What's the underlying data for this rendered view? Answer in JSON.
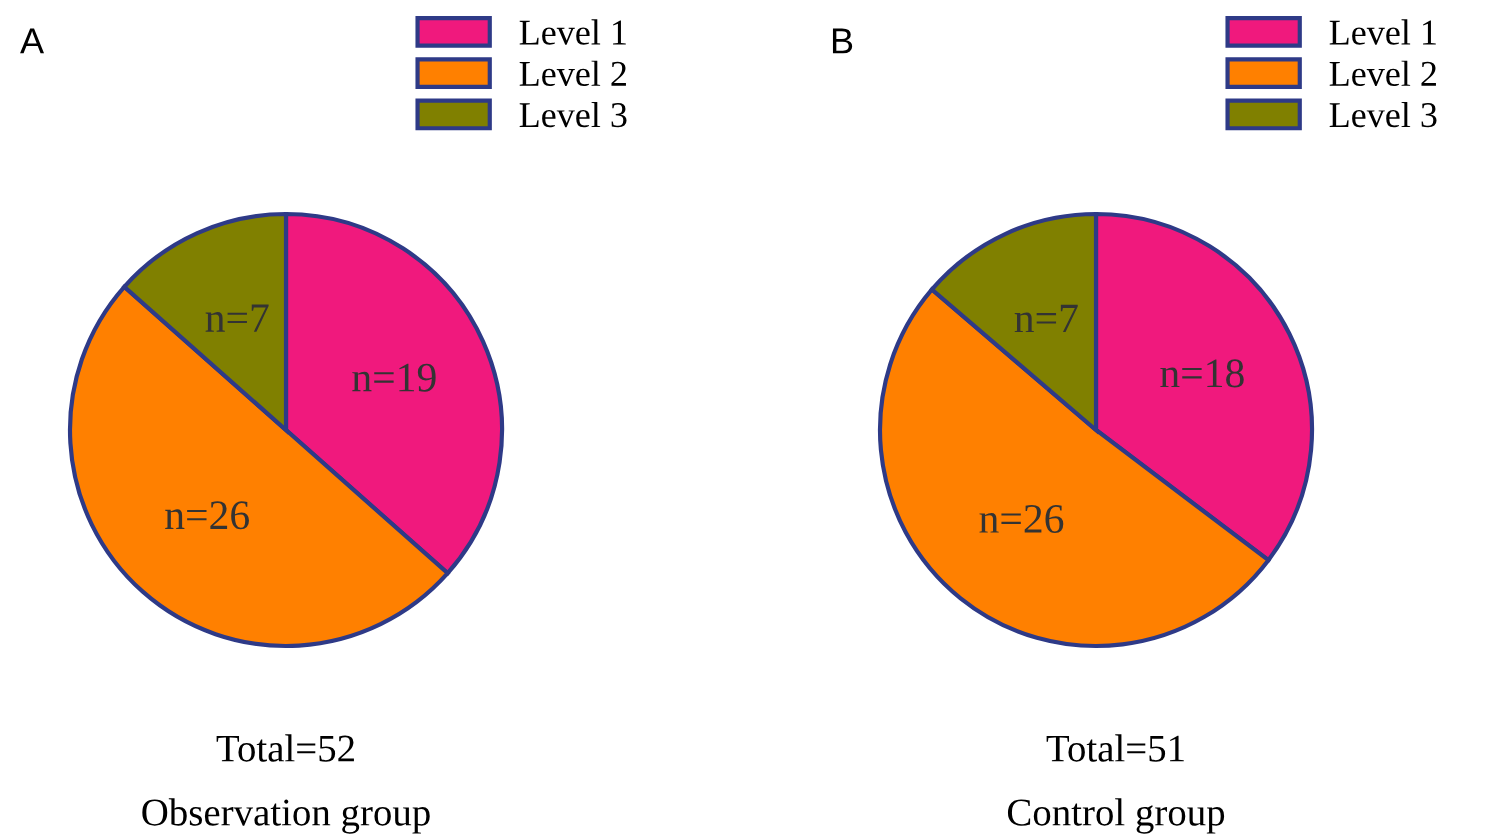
{
  "chart_data": [
    {
      "type": "pie",
      "title": "A",
      "categories": [
        "Level 1",
        "Level 2",
        "Level 3"
      ],
      "values": [
        19,
        26,
        7
      ],
      "colors": [
        "#f0197d",
        "#ff8000",
        "#808000"
      ],
      "value_labels": [
        "n=19",
        "n=26",
        "n=7"
      ],
      "legend": "top right",
      "annotations": [
        "Total=52",
        "Observation group"
      ]
    },
    {
      "type": "pie",
      "title": "B",
      "categories": [
        "Level 1",
        "Level 2",
        "Level 3"
      ],
      "values": [
        18,
        26,
        7
      ],
      "colors": [
        "#f0197d",
        "#ff8000",
        "#808000"
      ],
      "value_labels": [
        "n=18",
        "n=26",
        "n=7"
      ],
      "legend": "top right",
      "annotations": [
        "Total=51",
        "Control group"
      ]
    }
  ]
}
